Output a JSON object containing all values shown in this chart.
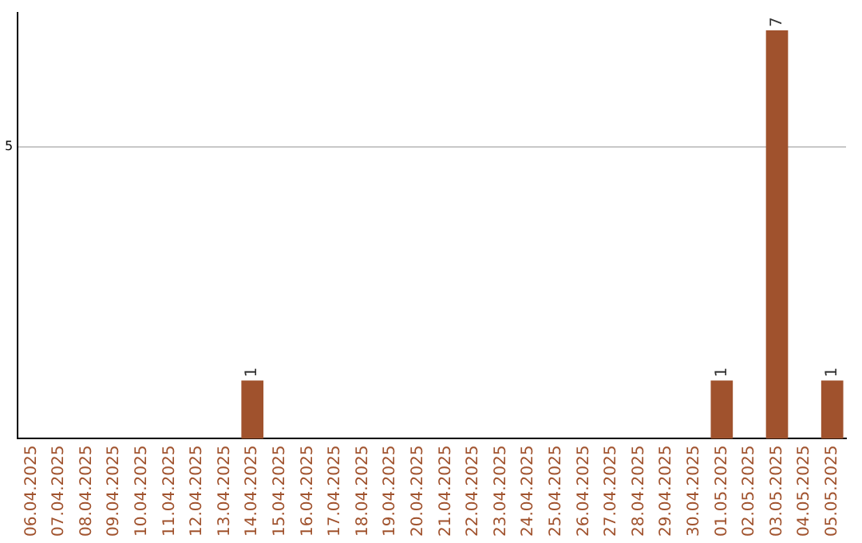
{
  "chart_data": {
    "type": "bar",
    "categories": [
      "06.04.2025",
      "07.04.2025",
      "08.04.2025",
      "09.04.2025",
      "10.04.2025",
      "11.04.2025",
      "12.04.2025",
      "13.04.2025",
      "14.04.2025",
      "15.04.2025",
      "16.04.2025",
      "17.04.2025",
      "18.04.2025",
      "19.04.2025",
      "20.04.2025",
      "21.04.2025",
      "22.04.2025",
      "23.04.2025",
      "24.04.2025",
      "25.04.2025",
      "26.04.2025",
      "27.04.2025",
      "28.04.2025",
      "29.04.2025",
      "30.04.2025",
      "01.05.2025",
      "02.05.2025",
      "03.05.2025",
      "04.05.2025",
      "05.05.2025"
    ],
    "values": [
      0,
      0,
      0,
      0,
      0,
      0,
      0,
      0,
      1,
      0,
      0,
      0,
      0,
      0,
      0,
      0,
      0,
      0,
      0,
      0,
      0,
      0,
      0,
      0,
      0,
      1,
      0,
      7,
      0,
      1
    ],
    "value_labels": [
      null,
      null,
      null,
      null,
      null,
      null,
      null,
      null,
      "1",
      null,
      null,
      null,
      null,
      null,
      null,
      null,
      null,
      null,
      null,
      null,
      null,
      null,
      null,
      null,
      null,
      "1",
      null,
      "7",
      null,
      "1"
    ],
    "color": "#a0522d",
    "ylim": [
      0,
      7.3
    ],
    "yticks": [
      5
    ],
    "grid": "y",
    "legend": false
  }
}
